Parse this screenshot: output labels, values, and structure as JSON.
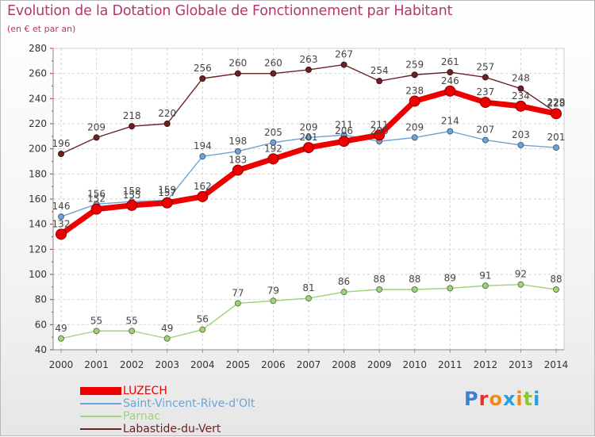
{
  "chart_data": {
    "type": "line",
    "title": "Evolution de la Dotation Globale de Fonctionnement par Habitant",
    "subtitle": "(en € et par an)",
    "xlabel": "",
    "ylabel": "",
    "ylim": [
      40,
      280
    ],
    "ytick_step": 20,
    "grid": true,
    "legend_position": "bottom-left",
    "x": [
      "2000",
      "2001",
      "2002",
      "2003",
      "2004",
      "2005",
      "2006",
      "2007",
      "2008",
      "2009",
      "2010",
      "2011",
      "2012",
      "2013",
      "2014"
    ],
    "series": [
      {
        "name": "Labastide-du-Vert",
        "color": "#6b2126",
        "values": [
          196,
          209,
          218,
          220,
          256,
          260,
          260,
          263,
          267,
          254,
          259,
          261,
          257,
          248,
          229
        ]
      },
      {
        "name": "Saint-Vincent-Rive-d'Olt",
        "color": "#6fa3d6",
        "values": [
          146,
          156,
          158,
          159,
          194,
          198,
          205,
          209,
          211,
          206,
          209,
          214,
          207,
          203,
          201
        ]
      },
      {
        "name": "Parnac",
        "color": "#9fd27a",
        "values": [
          49,
          55,
          55,
          49,
          56,
          77,
          79,
          81,
          86,
          88,
          88,
          89,
          91,
          92,
          88
        ]
      },
      {
        "name": "LUZECH",
        "color": "#ee0000",
        "values": [
          132,
          152,
          155,
          157,
          162,
          183,
          192,
          201,
          206,
          211,
          238,
          246,
          237,
          234,
          228
        ]
      }
    ]
  },
  "legend": [
    {
      "name": "LUZECH",
      "color": "#ee0000"
    },
    {
      "name": "Saint-Vincent-Rive-d'Olt",
      "color": "#6fa3d6"
    },
    {
      "name": "Parnac",
      "color": "#9fd27a"
    },
    {
      "name": "Labastide-du-Vert",
      "color": "#6b2126"
    }
  ],
  "logo": {
    "letters": [
      "P",
      "r",
      "o",
      "x",
      "i",
      "t",
      "i"
    ]
  }
}
